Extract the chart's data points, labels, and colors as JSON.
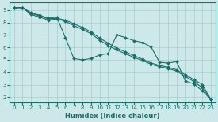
{
  "xlabel": "Humidex (Indice chaleur)",
  "bg_color": "#cce8e8",
  "grid_color": "#aacccc",
  "line_color": "#1a6e6a",
  "spine_color": "#1a6e6a",
  "xlim": [
    -0.5,
    23.5
  ],
  "ylim": [
    1.6,
    9.6
  ],
  "yticks": [
    2,
    3,
    4,
    5,
    6,
    7,
    8,
    9
  ],
  "xticks": [
    0,
    1,
    2,
    3,
    4,
    5,
    6,
    7,
    8,
    9,
    10,
    11,
    12,
    13,
    14,
    15,
    16,
    17,
    18,
    19,
    20,
    21,
    22,
    23
  ],
  "line1_x": [
    0,
    1,
    2,
    3,
    4,
    5,
    6,
    7,
    8,
    9,
    10,
    11,
    12,
    13,
    14,
    15,
    16,
    17,
    18,
    19,
    20,
    21,
    22,
    23
  ],
  "line1_y": [
    9.2,
    9.2,
    8.8,
    8.6,
    8.35,
    8.45,
    6.8,
    5.1,
    5.0,
    5.1,
    5.4,
    5.5,
    7.0,
    6.8,
    6.55,
    6.4,
    6.05,
    4.8,
    4.75,
    4.85,
    3.3,
    3.05,
    2.5,
    1.8
  ],
  "line2_x": [
    0,
    1,
    2,
    3,
    4,
    5,
    6,
    7,
    8,
    9,
    10,
    11,
    12,
    13,
    14,
    15,
    16,
    17,
    18,
    19,
    20,
    21,
    22,
    23
  ],
  "line2_y": [
    9.2,
    9.2,
    8.75,
    8.55,
    8.3,
    8.35,
    8.2,
    7.9,
    7.6,
    7.25,
    6.75,
    6.35,
    5.95,
    5.65,
    5.35,
    5.05,
    4.75,
    4.55,
    4.4,
    4.2,
    3.8,
    3.4,
    3.0,
    1.8
  ],
  "line3_x": [
    0,
    1,
    2,
    3,
    4,
    5,
    6,
    7,
    8,
    9,
    10,
    11,
    12,
    13,
    14,
    15,
    16,
    17,
    18,
    19,
    20,
    21,
    22,
    23
  ],
  "line3_y": [
    9.2,
    9.2,
    8.65,
    8.45,
    8.2,
    8.3,
    8.1,
    7.75,
    7.45,
    7.1,
    6.6,
    6.15,
    5.8,
    5.5,
    5.2,
    4.95,
    4.65,
    4.45,
    4.3,
    4.1,
    3.65,
    3.25,
    2.75,
    1.8
  ],
  "marker": "D",
  "markersize": 2.0,
  "linewidth": 0.8,
  "tick_labelsize": 5.0,
  "xlabel_fontsize": 6.0
}
